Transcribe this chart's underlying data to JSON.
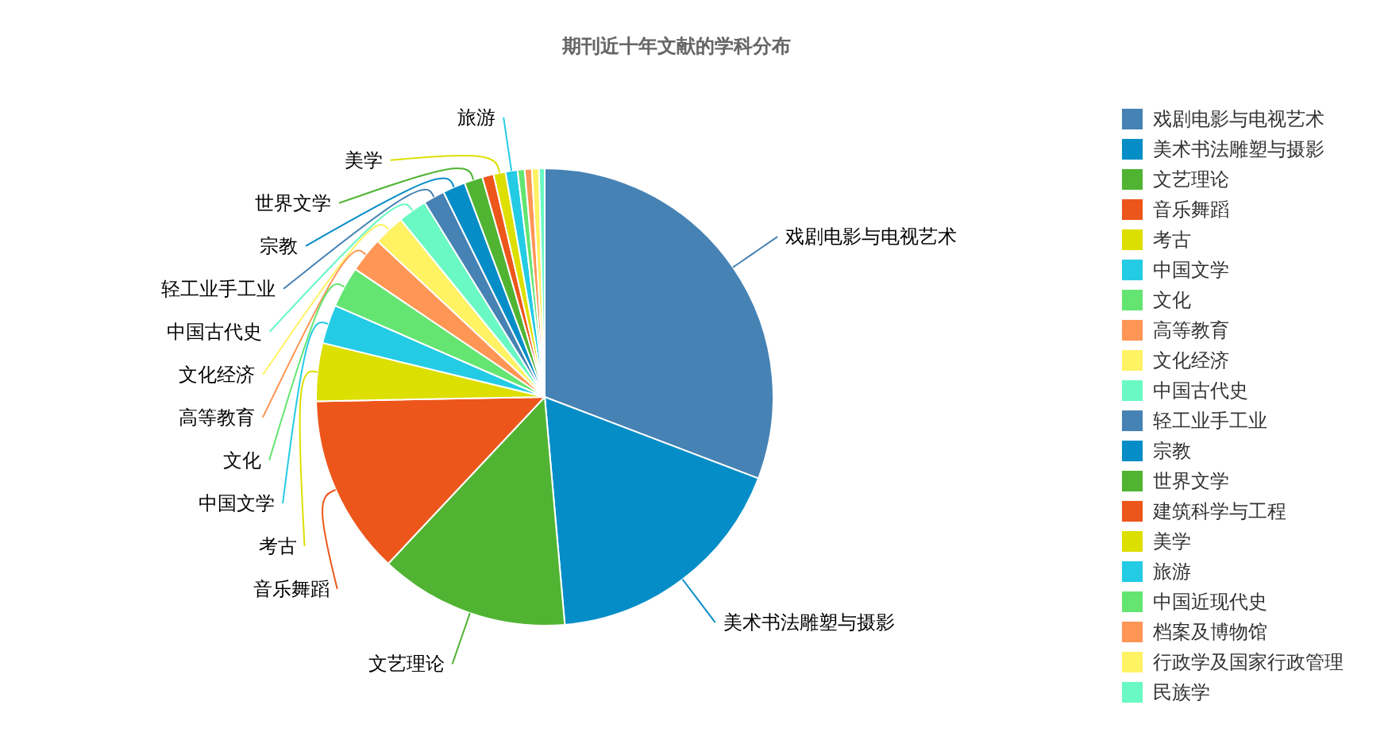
{
  "chart_data": {
    "type": "pie",
    "title": "期刊近十年文献的学科分布",
    "categories": [
      "戏剧电影与电视艺术",
      "美术书法雕塑与摄影",
      "文艺理论",
      "音乐舞蹈",
      "考古",
      "中国文学",
      "文化",
      "高等教育",
      "文化经济",
      "中国古代史",
      "轻工业手工业",
      "宗教",
      "世界文学",
      "建筑科学与工程",
      "美学",
      "旅游",
      "中国近现代史",
      "档案及博物馆",
      "行政学及国家行政管理",
      "民族学"
    ],
    "values": [
      30.8,
      17.8,
      13.4,
      12.7,
      4.1,
      2.75,
      2.9,
      2.5,
      2.2,
      2.05,
      1.5,
      1.6,
      1.3,
      0.8,
      0.85,
      0.85,
      0.5,
      0.5,
      0.5,
      0.4
    ],
    "colors": [
      "#4682b4",
      "#058dc7",
      "#50b432",
      "#ed561b",
      "#dddf00",
      "#24cbe5",
      "#64e572",
      "#ff9655",
      "#fff263",
      "#6af9c4",
      "#4682b4",
      "#058dc7",
      "#50b432",
      "#ed561b",
      "#dddf00",
      "#24cbe5",
      "#64e572",
      "#ff9655",
      "#fff263",
      "#6af9c4"
    ],
    "legend": "right"
  }
}
